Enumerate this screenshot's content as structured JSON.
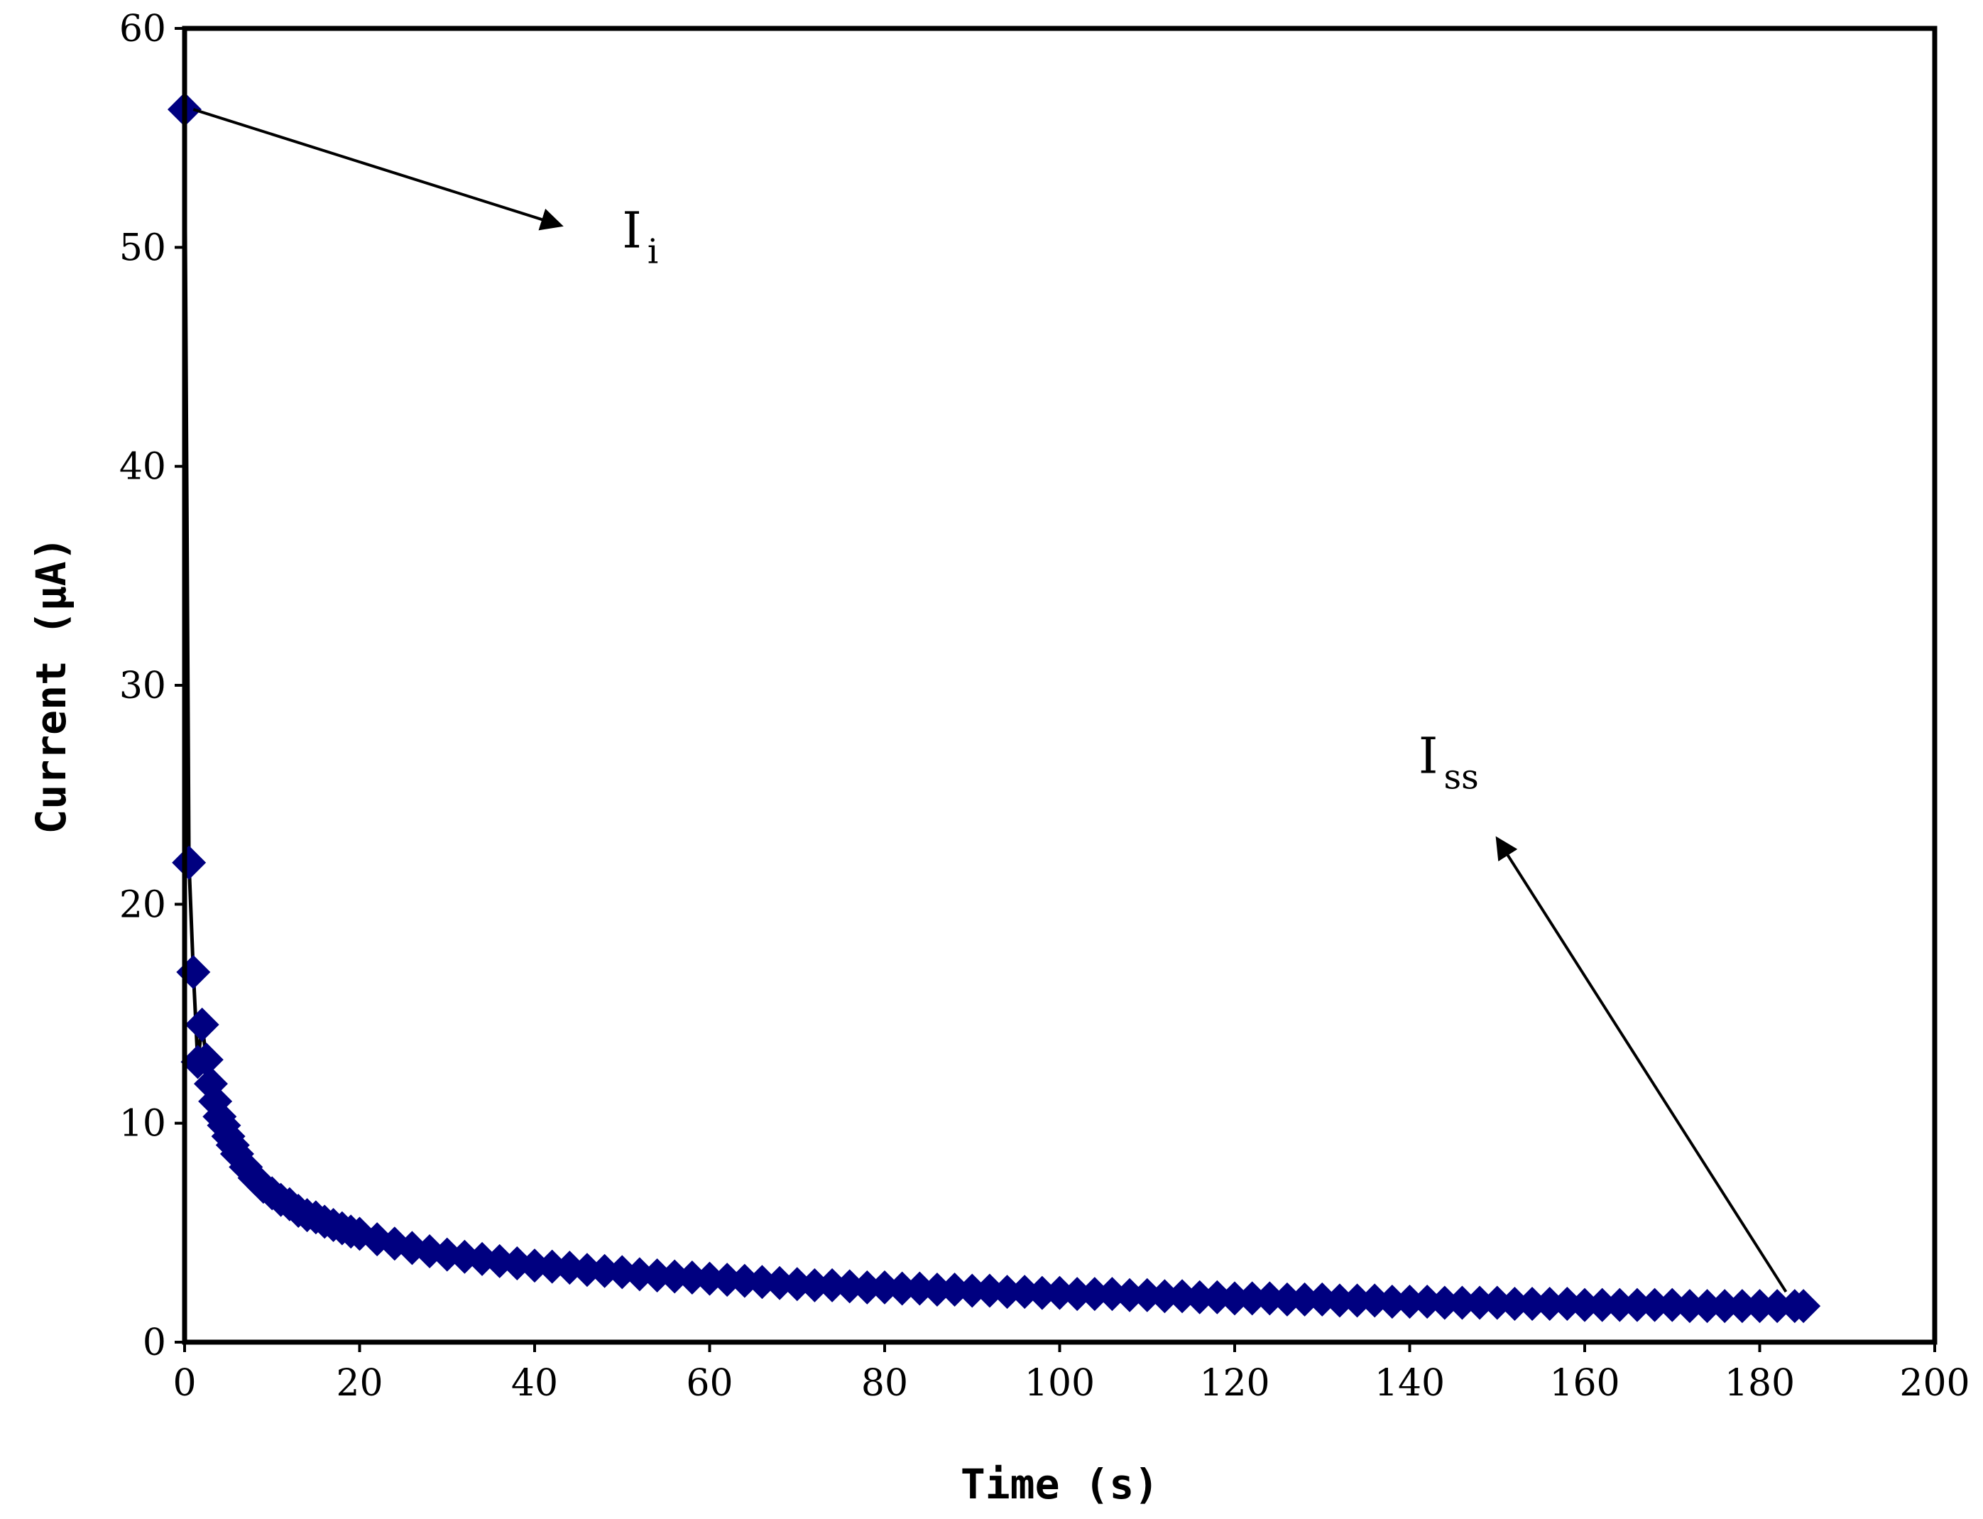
{
  "chart_data": {
    "type": "scatter",
    "title": "",
    "xlabel": "Time (s)",
    "ylabel": "Current (μA)",
    "xlim": [
      0,
      200
    ],
    "ylim": [
      0,
      60
    ],
    "xticks": [
      0,
      20,
      40,
      60,
      80,
      100,
      120,
      140,
      160,
      180,
      200
    ],
    "yticks": [
      0,
      10,
      20,
      30,
      40,
      50,
      60
    ],
    "grid": false,
    "legend": "none",
    "marker": "diamond",
    "series_color": "#000080",
    "line_color": "#000000",
    "series": [
      {
        "x": [
          0,
          0.5,
          1,
          1.5,
          2,
          2.5,
          3,
          3.5,
          4,
          4.5,
          5,
          5.5,
          6,
          7,
          8,
          9,
          10,
          11,
          12,
          13,
          14,
          15,
          16,
          17,
          18,
          19,
          20,
          22,
          24,
          26,
          28,
          30,
          32,
          34,
          36,
          38,
          40,
          42,
          44,
          46,
          48,
          50,
          52,
          54,
          56,
          58,
          60,
          62,
          64,
          66,
          68,
          70,
          72,
          74,
          76,
          78,
          80,
          82,
          84,
          86,
          88,
          90,
          92,
          94,
          96,
          98,
          100,
          102,
          104,
          106,
          108,
          110,
          112,
          114,
          116,
          118,
          120,
          122,
          124,
          126,
          128,
          130,
          132,
          134,
          136,
          138,
          140,
          142,
          144,
          146,
          148,
          150,
          152,
          154,
          156,
          158,
          160,
          162,
          164,
          166,
          168,
          170,
          172,
          174,
          176,
          178,
          180,
          182,
          184,
          185
        ],
        "y": [
          56.3,
          21.9,
          16.9,
          12.8,
          14.5,
          12.9,
          11.8,
          11.0,
          10.3,
          9.9,
          9.4,
          9.0,
          8.6,
          8.0,
          7.5,
          7.1,
          6.8,
          6.5,
          6.3,
          6.0,
          5.8,
          5.7,
          5.5,
          5.35,
          5.2,
          5.05,
          4.95,
          4.7,
          4.5,
          4.3,
          4.15,
          4.0,
          3.9,
          3.8,
          3.7,
          3.6,
          3.5,
          3.45,
          3.4,
          3.3,
          3.25,
          3.2,
          3.1,
          3.05,
          3.0,
          2.95,
          2.9,
          2.85,
          2.8,
          2.75,
          2.7,
          2.65,
          2.6,
          2.6,
          2.55,
          2.5,
          2.5,
          2.45,
          2.45,
          2.4,
          2.4,
          2.35,
          2.35,
          2.3,
          2.3,
          2.25,
          2.25,
          2.2,
          2.2,
          2.2,
          2.15,
          2.15,
          2.1,
          2.1,
          2.05,
          2.05,
          2.0,
          2.0,
          2.0,
          1.95,
          1.95,
          1.95,
          1.9,
          1.9,
          1.9,
          1.85,
          1.85,
          1.85,
          1.8,
          1.8,
          1.8,
          1.8,
          1.75,
          1.75,
          1.75,
          1.75,
          1.7,
          1.7,
          1.7,
          1.7,
          1.7,
          1.7,
          1.65,
          1.65,
          1.65,
          1.65,
          1.65,
          1.65,
          1.65,
          1.65
        ]
      }
    ],
    "annotations": [
      {
        "text": "I",
        "sub": "i",
        "arrow_from": [
          1,
          56.3
        ],
        "arrow_to": [
          43,
          51.0
        ],
        "label_at": [
          50,
          50
        ]
      },
      {
        "text": "I",
        "sub": "ss",
        "arrow_from": [
          183,
          2.3
        ],
        "arrow_to": [
          150,
          23.0
        ],
        "label_at": [
          141,
          26
        ]
      }
    ]
  }
}
